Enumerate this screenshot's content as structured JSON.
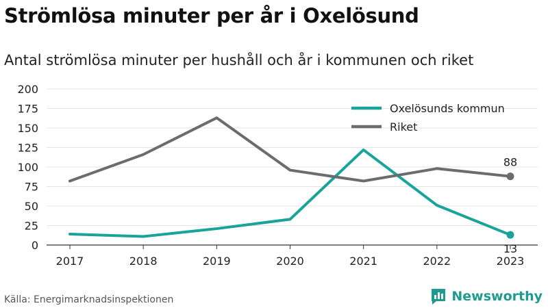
{
  "title": "Strömlösa minuter per år i Oxelösund",
  "subtitle": "Antal strömlösa minuter per hushåll och år i kommunen och riket",
  "source": "Källa: Energimarknadsinspektionen",
  "brand": {
    "name": "Newsworthy",
    "icon": "newsworthy-logo-icon",
    "color": "#1e9b8f"
  },
  "chart_data": {
    "type": "line",
    "categories": [
      "2017",
      "2018",
      "2019",
      "2020",
      "2021",
      "2022",
      "2023"
    ],
    "series": [
      {
        "name": "Oxelösunds kommun",
        "color": "#1aa39a",
        "values": [
          14,
          11,
          21,
          33,
          122,
          51,
          13
        ]
      },
      {
        "name": "Riket",
        "color": "#6b6b70",
        "values": [
          82,
          116,
          163,
          96,
          82,
          98,
          88
        ]
      }
    ],
    "yticks": [
      0,
      25,
      50,
      75,
      100,
      125,
      150,
      175,
      200
    ],
    "ylim": [
      0,
      200
    ],
    "grid": true,
    "legend": "top-right",
    "end_labels": [
      "13",
      "88"
    ]
  }
}
